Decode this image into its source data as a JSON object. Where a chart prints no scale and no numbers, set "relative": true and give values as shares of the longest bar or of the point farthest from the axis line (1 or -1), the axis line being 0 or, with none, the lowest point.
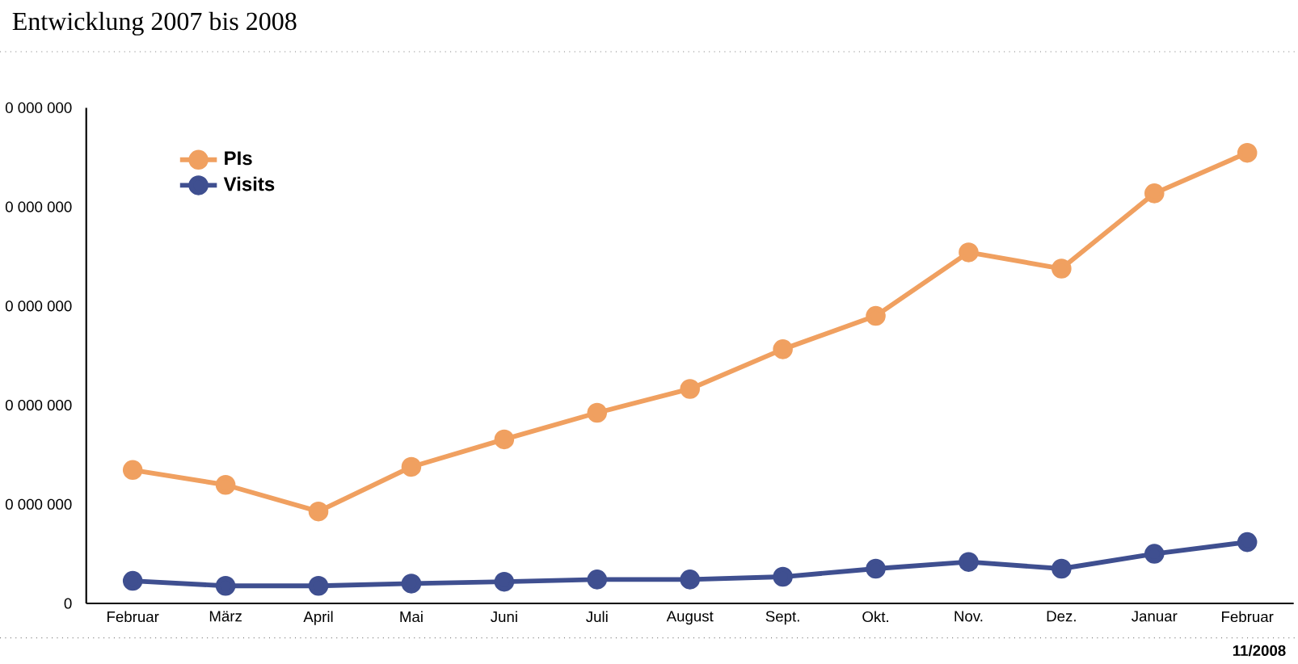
{
  "chart_data": {
    "type": "line",
    "title": "Entwicklung 2007 bis 2008",
    "categories": [
      "Februar",
      "März",
      "April",
      "Mai",
      "Juni",
      "Juli",
      "August",
      "Sept.",
      "Okt.",
      "Nov.",
      "Dez.",
      "Januar",
      "Februar"
    ],
    "series": [
      {
        "name": "PIs",
        "color": "#f0a060",
        "values": [
          0.296,
          0.263,
          0.204,
          0.303,
          0.364,
          0.423,
          0.476,
          0.564,
          0.638,
          0.779,
          0.743,
          0.91,
          1
        ]
      },
      {
        "name": "Visits",
        "color": "#3f4f90",
        "values": [
          0.05,
          0.039,
          0.039,
          0.044,
          0.048,
          0.053,
          0.053,
          0.059,
          0.077,
          0.092,
          0.077,
          0.11,
          0.136
        ]
      }
    ],
    "relative": true,
    "legend": "top left",
    "marker": "circle",
    "line_style": "solid",
    "annotations": [
      "0",
      "0 000 000",
      "0 000 000",
      "0 000 000",
      "0 000 000",
      "0 000 000",
      "11/2008"
    ]
  }
}
